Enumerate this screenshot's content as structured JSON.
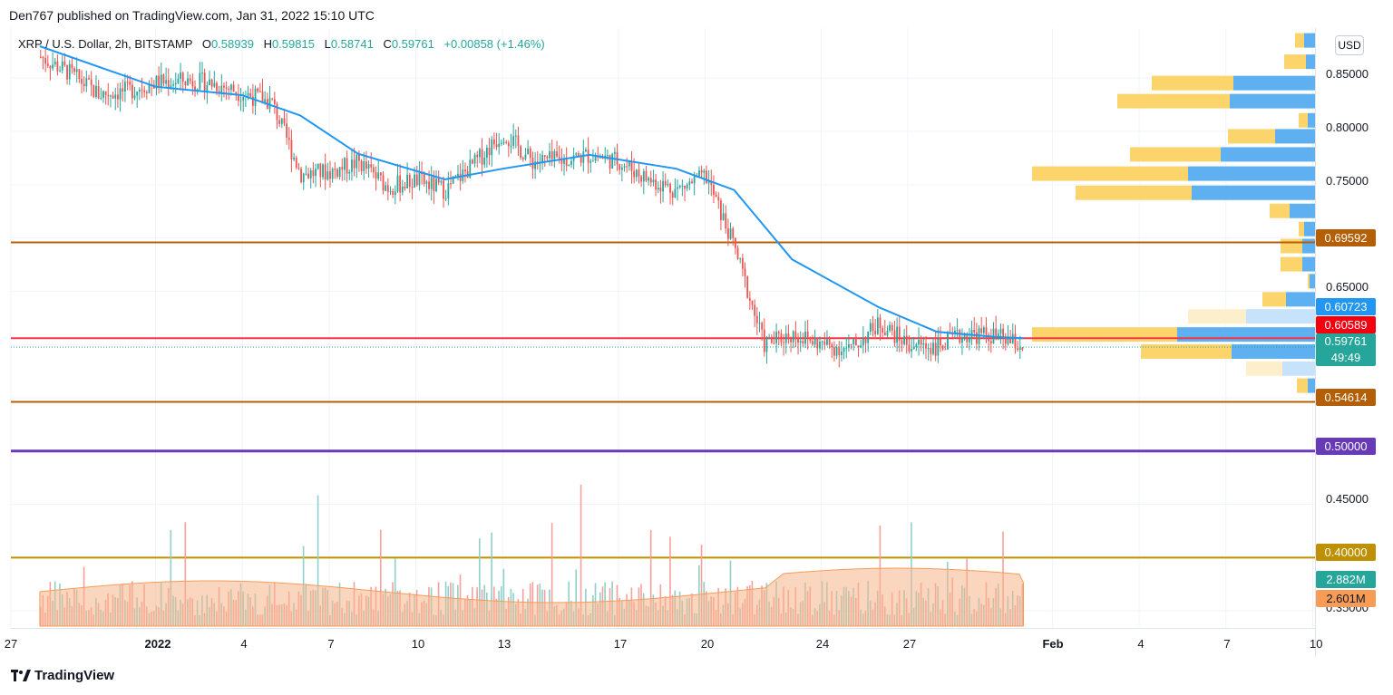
{
  "publish": {
    "text": "Den767 published on TradingView.com, Jan 31, 2022 15:10 UTC"
  },
  "legend": {
    "symbol": "XRP / U.S. Dollar, 2h, BITSTAMP",
    "o_label": "O",
    "o_value": "0.58939",
    "h_label": "H",
    "h_value": "0.59815",
    "l_label": "L",
    "l_value": "0.58741",
    "c_label": "C",
    "c_value": "0.59761",
    "change": "+0.00858 (+1.46%)"
  },
  "currency_button": "USD",
  "price_tags": {
    "level_069592": "0.69592",
    "ma_060723": "0.60723",
    "level_060589": "0.60589",
    "last_price": "0.59761",
    "countdown": "49:49",
    "level_054614": "0.54614",
    "level_050000": "0.50000",
    "level_040000": "0.40000",
    "vol_current": "2.882M",
    "vol_ma": "2.601M"
  },
  "y_axis_labels": [
    "0.85000",
    "0.80000",
    "0.75000",
    "0.65000",
    "0.45000"
  ],
  "y_axis_partial_label": "0.35000",
  "x_axis_labels": [
    {
      "label": "27",
      "bold": false
    },
    {
      "label": "2022",
      "bold": true
    },
    {
      "label": "4",
      "bold": false
    },
    {
      "label": "7",
      "bold": false
    },
    {
      "label": "10",
      "bold": false
    },
    {
      "label": "13",
      "bold": false
    },
    {
      "label": "17",
      "bold": false
    },
    {
      "label": "20",
      "bold": false
    },
    {
      "label": "24",
      "bold": false
    },
    {
      "label": "27",
      "bold": false
    },
    {
      "label": "Feb",
      "bold": true
    },
    {
      "label": "4",
      "bold": false
    },
    {
      "label": "7",
      "bold": false
    },
    {
      "label": "10",
      "bold": false
    }
  ],
  "brand": "TradingView",
  "colors": {
    "up": "#26a69a",
    "down": "#ef5350",
    "ma": "#2196f3",
    "level_brown": "#b45f06",
    "level_red": "#f23645",
    "level_purple": "#673ab7",
    "level_gold": "#bf9000",
    "vp_up": "#5eb0f0",
    "vp_down": "#fbd56b",
    "volume_ma_fill": "#f7b48a"
  },
  "chart_data": {
    "type": "candlestick",
    "symbol": "XRP / U.S. Dollar",
    "interval": "2h",
    "exchange": "BITSTAMP",
    "ylim": [
      0.334,
      0.897
    ],
    "x_range": [
      "2021-12-27",
      "2022-02-10"
    ],
    "close_path": [
      [
        "2021-12-28",
        0.87
      ],
      [
        "2021-12-29",
        0.855
      ],
      [
        "2021-12-30",
        0.835
      ],
      [
        "2021-12-31",
        0.838
      ],
      [
        "2022-01-01",
        0.846
      ],
      [
        "2022-01-02",
        0.848
      ],
      [
        "2022-01-03",
        0.845
      ],
      [
        "2022-01-04",
        0.836
      ],
      [
        "2022-01-05",
        0.827
      ],
      [
        "2022-01-06",
        0.76
      ],
      [
        "2022-01-07",
        0.762
      ],
      [
        "2022-01-08",
        0.771
      ],
      [
        "2022-01-09",
        0.748
      ],
      [
        "2022-01-10",
        0.754
      ],
      [
        "2022-01-11",
        0.745
      ],
      [
        "2022-01-12",
        0.77
      ],
      [
        "2022-01-13",
        0.799
      ],
      [
        "2022-01-14",
        0.772
      ],
      [
        "2022-01-15",
        0.773
      ],
      [
        "2022-01-16",
        0.778
      ],
      [
        "2022-01-17",
        0.772
      ],
      [
        "2022-01-18",
        0.755
      ],
      [
        "2022-01-19",
        0.745
      ],
      [
        "2022-01-20",
        0.758
      ],
      [
        "2022-01-21",
        0.69
      ],
      [
        "2022-01-22",
        0.6
      ],
      [
        "2022-01-23",
        0.61
      ],
      [
        "2022-01-24",
        0.6
      ],
      [
        "2022-01-25",
        0.595
      ],
      [
        "2022-01-26",
        0.62
      ],
      [
        "2022-01-27",
        0.6
      ],
      [
        "2022-01-28",
        0.598
      ],
      [
        "2022-01-29",
        0.61
      ],
      [
        "2022-01-30",
        0.608
      ],
      [
        "2022-01-31",
        0.5976
      ]
    ],
    "moving_average": [
      [
        "2021-12-28",
        0.88
      ],
      [
        "2022-01-01",
        0.842
      ],
      [
        "2022-01-04",
        0.834
      ],
      [
        "2022-01-06",
        0.815
      ],
      [
        "2022-01-08",
        0.779
      ],
      [
        "2022-01-11",
        0.755
      ],
      [
        "2022-01-13",
        0.765
      ],
      [
        "2022-01-16",
        0.778
      ],
      [
        "2022-01-19",
        0.765
      ],
      [
        "2022-01-21",
        0.745
      ],
      [
        "2022-01-23",
        0.68
      ],
      [
        "2022-01-26",
        0.635
      ],
      [
        "2022-01-28",
        0.612
      ],
      [
        "2022-01-30",
        0.6072
      ],
      [
        "2022-01-31",
        0.606
      ]
    ],
    "horizontal_levels": [
      {
        "price": 0.69592,
        "color": "brown"
      },
      {
        "price": 0.60589,
        "color": "red"
      },
      {
        "price": 0.54614,
        "color": "brown"
      },
      {
        "price": 0.5,
        "color": "purple"
      },
      {
        "price": 0.4,
        "color": "gold"
      }
    ],
    "last": {
      "open": 0.58939,
      "high": 0.59815,
      "low": 0.58741,
      "close": 0.59761,
      "change": 0.00858,
      "change_pct": 1.46
    },
    "volume": {
      "current": "2.882M",
      "average": "2.601M"
    },
    "volume_profile": [
      {
        "price": 0.885,
        "up": 0.3,
        "down": 0.25
      },
      {
        "price": 0.865,
        "up": 0.25,
        "down": 0.6
      },
      {
        "price": 0.845,
        "up": 2.25,
        "down": 2.25
      },
      {
        "price": 0.828,
        "up": 2.35,
        "down": 3.1
      },
      {
        "price": 0.81,
        "up": 0.2,
        "down": 0.25
      },
      {
        "price": 0.795,
        "up": 1.1,
        "down": 1.3
      },
      {
        "price": 0.778,
        "up": 2.6,
        "down": 2.5
      },
      {
        "price": 0.76,
        "up": 3.5,
        "down": 4.3
      },
      {
        "price": 0.742,
        "up": 3.4,
        "down": 3.2
      },
      {
        "price": 0.725,
        "up": 0.7,
        "down": 0.55
      },
      {
        "price": 0.708,
        "up": 0.3,
        "down": 0.15
      },
      {
        "price": 0.692,
        "up": 0.35,
        "down": 0.6
      },
      {
        "price": 0.675,
        "up": 0.35,
        "down": 0.6
      },
      {
        "price": 0.659,
        "up": 0.15,
        "down": 0.05
      },
      {
        "price": 0.642,
        "up": 0.8,
        "down": 0.65
      },
      {
        "price": 0.626,
        "up": 1.9,
        "down": 1.6
      },
      {
        "price": 0.609,
        "up": 3.8,
        "down": 4.0
      },
      {
        "price": 0.593,
        "up": 2.3,
        "down": 2.5
      },
      {
        "price": 0.577,
        "up": 0.9,
        "down": 1.0
      },
      {
        "price": 0.561,
        "up": 0.2,
        "down": 0.3
      }
    ]
  }
}
